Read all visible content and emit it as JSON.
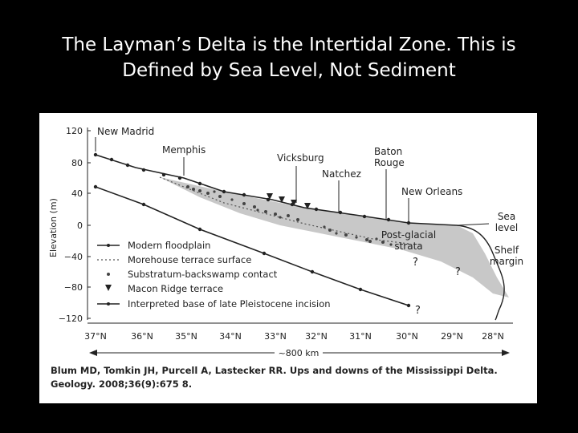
{
  "slide": {
    "title_line1": "The Layman’s Delta is the Intertidal Zone. This is",
    "title_line2": "Defined by Sea Level, Not Sediment"
  },
  "figure": {
    "y_axis": {
      "label": "Elevation (m)",
      "ticks": [
        "120",
        "80",
        "40",
        "0",
        "−40",
        "−80",
        "−120"
      ]
    },
    "x_axis": {
      "ticks": [
        "37°N",
        "36°N",
        "35°N",
        "34°N",
        "33°N",
        "32°N",
        "31°N",
        "30°N",
        "29°N",
        "28°N"
      ],
      "distance_label": "~800 km"
    },
    "places": {
      "new_madrid": "New Madrid",
      "memphis": "Memphis",
      "vicksburg": "Vicksburg",
      "natchez": "Natchez",
      "baton_rouge_1": "Baton",
      "baton_rouge_2": "Rouge",
      "new_orleans": "New Orleans"
    },
    "annotations": {
      "sea_level_1": "Sea",
      "sea_level_2": "level",
      "shelf_margin_1": "Shelf",
      "shelf_margin_2": "margin",
      "post_glacial_1": "Post-glacial",
      "post_glacial_2": "strata",
      "question_mark": "?"
    },
    "legend": [
      "Modern floodplain",
      "Morehouse terrace surface",
      "Substratum-backswamp contact",
      "Macon Ridge terrace",
      "Interpreted base of late Pleistocene incision"
    ],
    "caption_line1": "Blum MD, Tomkin JH, Purcell A, Lastecker RR. Ups and downs of the Mississippi Delta.",
    "caption_line2": "Geology. 2008;36(9):675  8."
  },
  "colors": {
    "background": "#000000",
    "title_text": "#ffffff",
    "panel": "#ffffff",
    "strata_fill": "#c8c8c8",
    "lines": "#222222"
  }
}
